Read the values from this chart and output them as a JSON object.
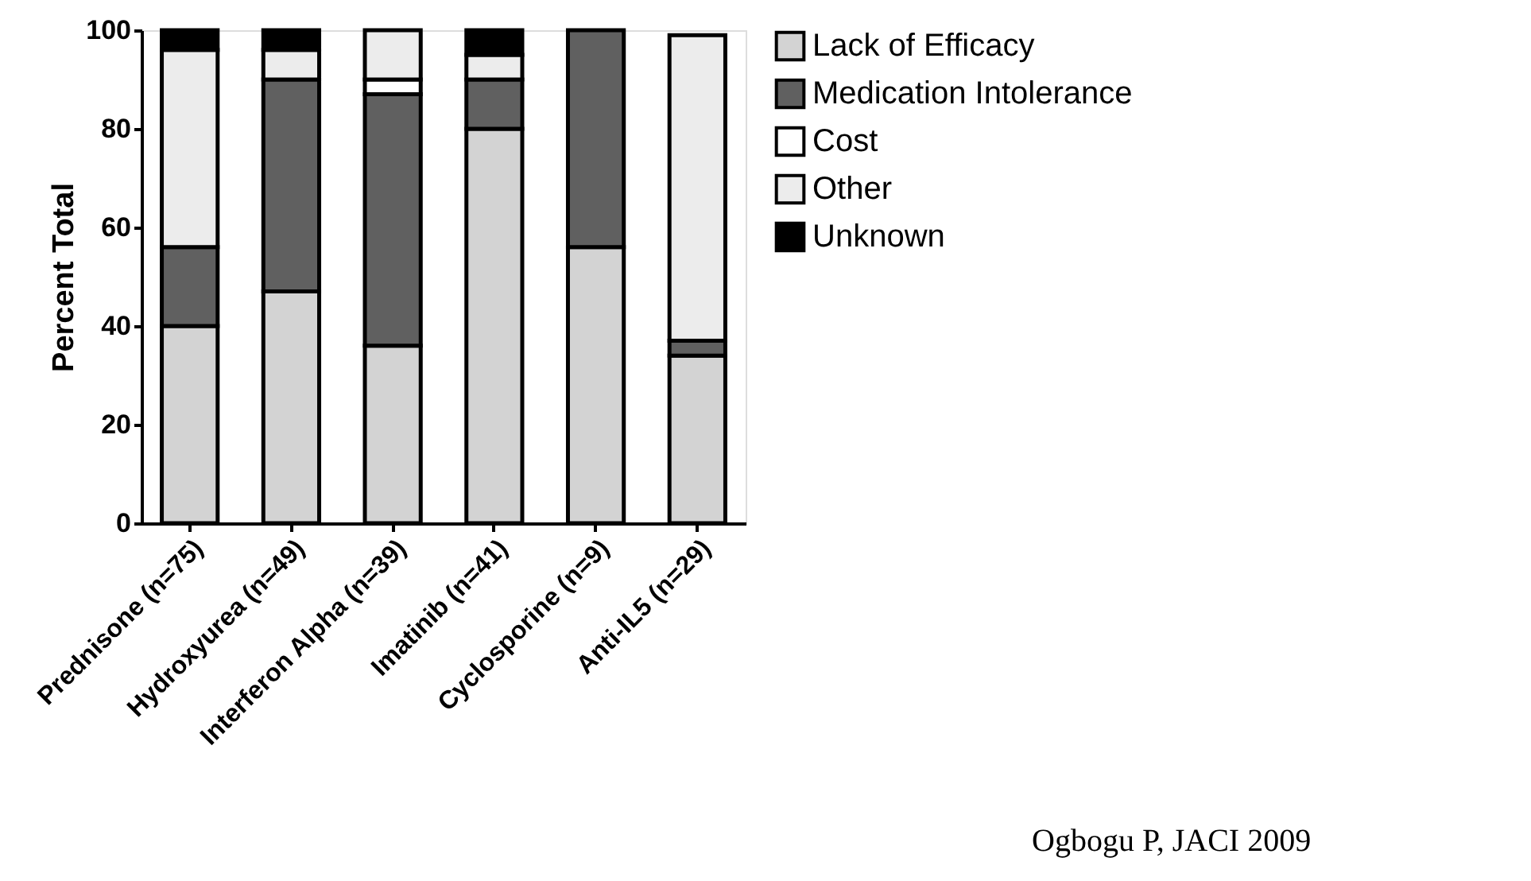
{
  "chart_data": {
    "type": "bar",
    "stacked": true,
    "ylabel": "Percent Total",
    "categories": [
      "Prednisone (n=75)",
      "Hydroxyurea (n=49)",
      "Interferon Alpha (n=39)",
      "Imatinib (n=41)",
      "Cyclosporine (n=9)",
      "Anti-IL5 (n=29)"
    ],
    "series": [
      {
        "name": "Lack of Efficacy",
        "color": "#d3d3d3",
        "values": [
          40,
          47,
          36,
          80,
          56,
          34
        ]
      },
      {
        "name": "Medication Intolerance",
        "color": "#606060",
        "values": [
          16,
          43,
          51,
          10,
          44,
          3
        ]
      },
      {
        "name": "Cost",
        "color": "#ffffff",
        "values": [
          0,
          0,
          3,
          0,
          0,
          0
        ]
      },
      {
        "name": "Other",
        "color": "#ececec",
        "values": [
          40,
          6,
          10,
          5,
          0,
          62
        ]
      },
      {
        "name": "Unknown",
        "color": "#000000",
        "values": [
          4,
          4,
          0,
          5,
          0,
          0
        ]
      }
    ],
    "ylim": [
      0,
      100
    ],
    "yticks": [
      0,
      20,
      40,
      60,
      80,
      100
    ],
    "grid": false,
    "legend": "top right",
    "annotations": [
      "Ogbogu P, JACI 2009"
    ]
  }
}
